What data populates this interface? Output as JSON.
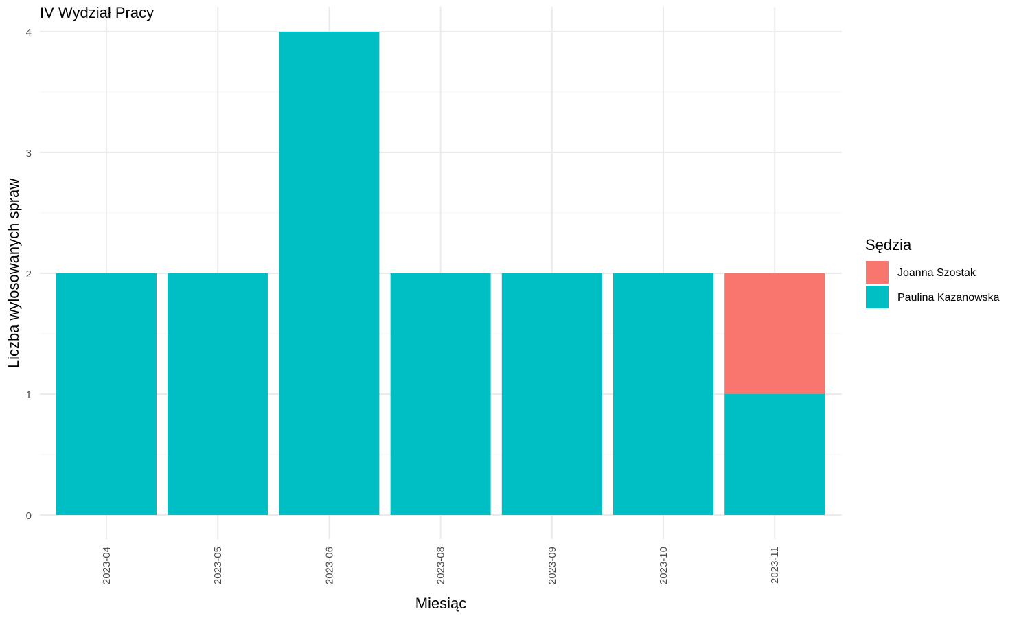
{
  "chart_data": {
    "type": "bar",
    "stacked": true,
    "title": "IV Wydział Pracy",
    "xlabel": "Miesiąc",
    "ylabel": "Liczba wylosowanych spraw",
    "categories": [
      "2023-04",
      "2023-05",
      "2023-06",
      "2023-08",
      "2023-09",
      "2023-10",
      "2023-11"
    ],
    "series": [
      {
        "name": "Paulina Kazanowska",
        "color": "#00BFC4",
        "values": [
          2,
          2,
          4,
          2,
          2,
          2,
          1
        ]
      },
      {
        "name": "Joanna Szostak",
        "color": "#F8766D",
        "values": [
          0,
          0,
          0,
          0,
          0,
          0,
          1
        ]
      }
    ],
    "ylim": [
      0,
      4
    ],
    "yticks": [
      0,
      1,
      2,
      3,
      4
    ],
    "grid": true,
    "legend": {
      "title": "Sędzia",
      "placement": "right",
      "order": [
        "Joanna Szostak",
        "Paulina Kazanowska"
      ]
    }
  }
}
